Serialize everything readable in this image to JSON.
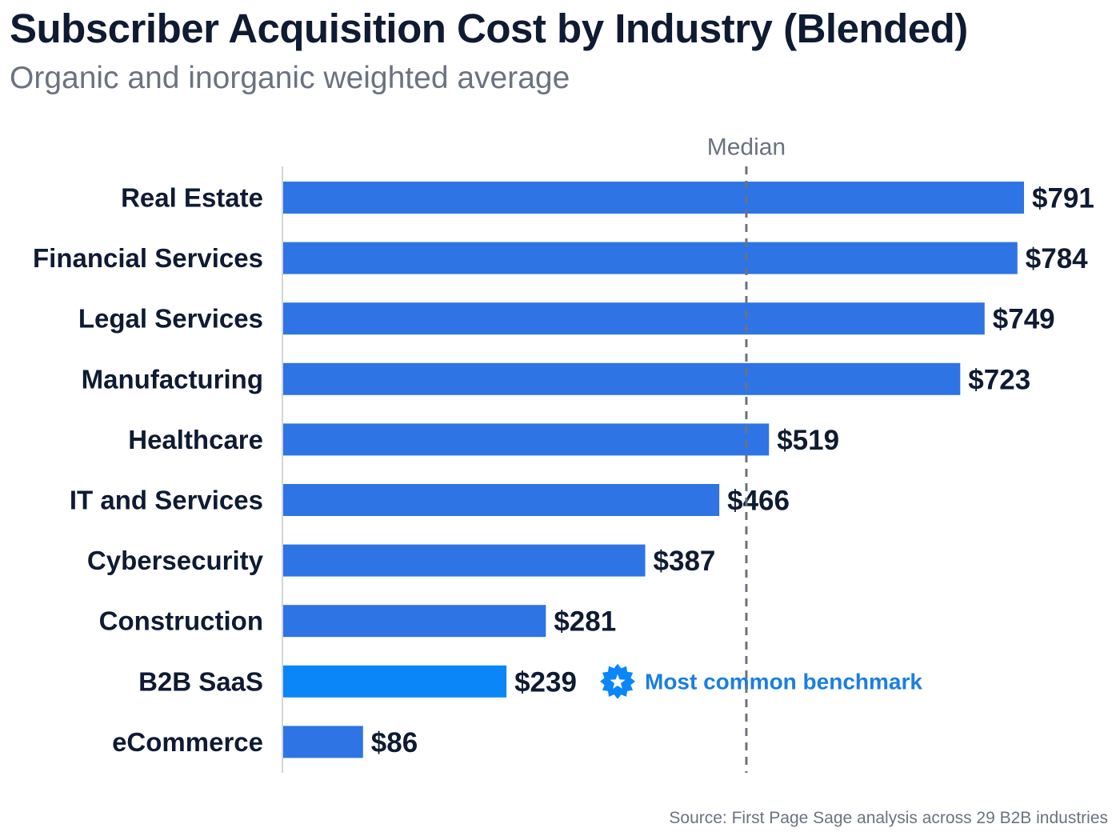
{
  "title": "Subscriber Acquisition Cost by Industry (Blended)",
  "subtitle": "Organic and inorganic weighted average",
  "source": "Source: First Page Sage analysis across 29 B2B industries",
  "colors": {
    "bar": "#2f74e4",
    "highlight_bar": "#0a86f8",
    "label_text": "#0f1b33",
    "annotation_text": "#1a7fe0",
    "median_line": "#6b7280",
    "axis_line": "#d1d5db"
  },
  "chart_data": {
    "type": "bar",
    "orientation": "horizontal",
    "title": "Subscriber Acquisition Cost by Industry (Blended)",
    "subtitle": "Organic and inorganic weighted average",
    "xlabel": "",
    "ylabel": "",
    "xlim": [
      0,
      791
    ],
    "grid": false,
    "value_prefix": "$",
    "categories": [
      "Real Estate",
      "Financial Services",
      "Legal Services",
      "Manufacturing",
      "Healthcare",
      "IT and Services",
      "Cybersecurity",
      "Construction",
      "B2B SaaS",
      "eCommerce"
    ],
    "values": [
      791,
      784,
      749,
      723,
      519,
      466,
      387,
      281,
      239,
      86
    ],
    "value_labels": [
      "$791",
      "$784",
      "$749",
      "$723",
      "$519",
      "$466",
      "$387",
      "$281",
      "$239",
      "$86"
    ],
    "highlight": {
      "category": "B2B SaaS",
      "annotation": "Most common benchmark",
      "icon": "star-badge-icon"
    },
    "reference_line": {
      "label": "Median",
      "value": 494,
      "style": "dashed"
    }
  }
}
